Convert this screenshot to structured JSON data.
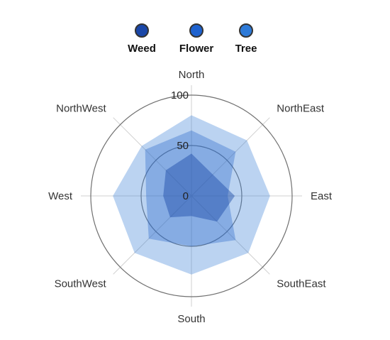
{
  "chart_data": {
    "type": "radar",
    "categories": [
      "North",
      "NorthEast",
      "East",
      "SouthEast",
      "South",
      "SouthWest",
      "West",
      "NorthWest"
    ],
    "series": [
      {
        "name": "Weed",
        "values": [
          42,
          30,
          43,
          36,
          20,
          30,
          28,
          36
        ],
        "color": "#1b4aa6",
        "fill_opacity": 0.45
      },
      {
        "name": "Flower",
        "values": [
          65,
          62,
          36,
          62,
          50,
          60,
          45,
          65
        ],
        "color": "#2563c9",
        "fill_opacity": 0.35
      },
      {
        "name": "Tree",
        "values": [
          80,
          78,
          78,
          80,
          78,
          80,
          78,
          70
        ],
        "color": "#3b82d6",
        "fill_opacity": 0.35
      }
    ],
    "radial_ticks": [
      "0",
      "50",
      "100"
    ],
    "rlim": [
      0,
      100
    ],
    "legend_position": "top-center",
    "grid": true
  }
}
